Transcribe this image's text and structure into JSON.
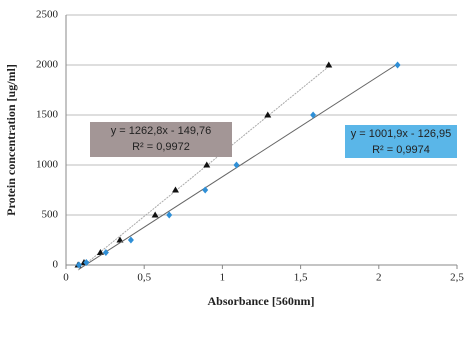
{
  "chart_data": {
    "type": "scatter",
    "xlabel": "Absorbance [560nm]",
    "ylabel": "Protein concentration [ug/ml]",
    "xlim": [
      0,
      2.5
    ],
    "xticks": [
      0,
      {
        "value": 0.5,
        "label": "0,5"
      },
      1,
      {
        "value": 1.5,
        "label": "1,5"
      },
      2,
      {
        "value": 2.5,
        "label": "2,5"
      }
    ],
    "ylim": [
      0,
      2500
    ],
    "yticks": [
      0,
      500,
      1000,
      1500,
      2000,
      2500
    ],
    "grid": true,
    "series": [
      {
        "color": "#111111",
        "marker": "triangle",
        "x": [
          0.077,
          0.115,
          0.22,
          0.345,
          0.57,
          0.7,
          0.9,
          1.29,
          1.68
        ],
        "values": [
          0,
          25,
          125,
          250,
          500,
          750,
          1000,
          1500,
          2000
        ]
      },
      {
        "color": "#2f8fd6",
        "marker": "diamond",
        "x": [
          0.083,
          0.13,
          0.255,
          0.415,
          0.66,
          0.89,
          1.09,
          1.58,
          2.12
        ],
        "values": [
          0,
          25,
          125,
          250,
          500,
          750,
          1000,
          1500,
          2000
        ]
      }
    ],
    "annotations": [
      {
        "lines": [
          "y = 1262,8x - 149,76",
          "R² = 0,9972"
        ],
        "color": "#a39696"
      },
      {
        "lines": [
          "y = 1001,9x - 126,95",
          "R² = 0,9974"
        ],
        "color": "#5ab6e8"
      }
    ]
  }
}
